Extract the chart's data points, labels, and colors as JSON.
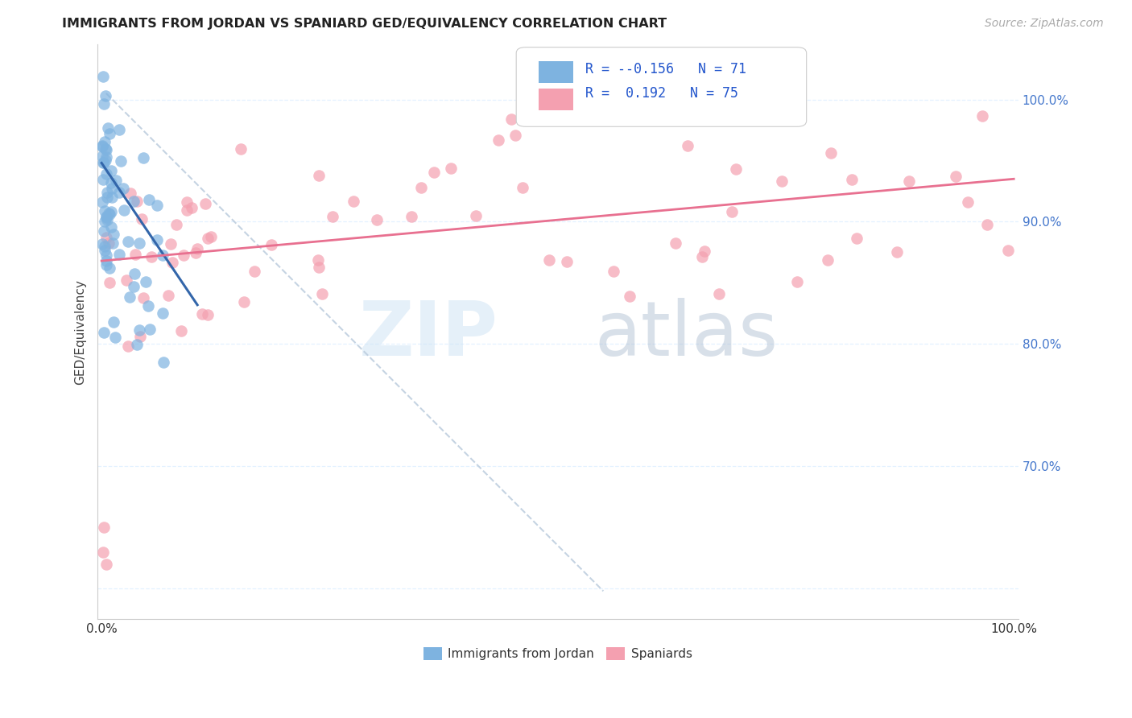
{
  "title": "IMMIGRANTS FROM JORDAN VS SPANIARD GED/EQUIVALENCY CORRELATION CHART",
  "source_text": "Source: ZipAtlas.com",
  "ylabel": "GED/Equivalency",
  "legend_label1": "Immigrants from Jordan",
  "legend_label2": "Spaniards",
  "color_blue": "#7EB3E0",
  "color_pink": "#F4A0B0",
  "color_blue_line": "#3366AA",
  "color_pink_line": "#E87090",
  "color_dashed": "#BBCCDD",
  "background_color": "#FFFFFF",
  "watermark_zip": "ZIP",
  "watermark_atlas": "atlas",
  "r1": "-0.156",
  "n1": "71",
  "r2": "0.192",
  "n2": "75"
}
